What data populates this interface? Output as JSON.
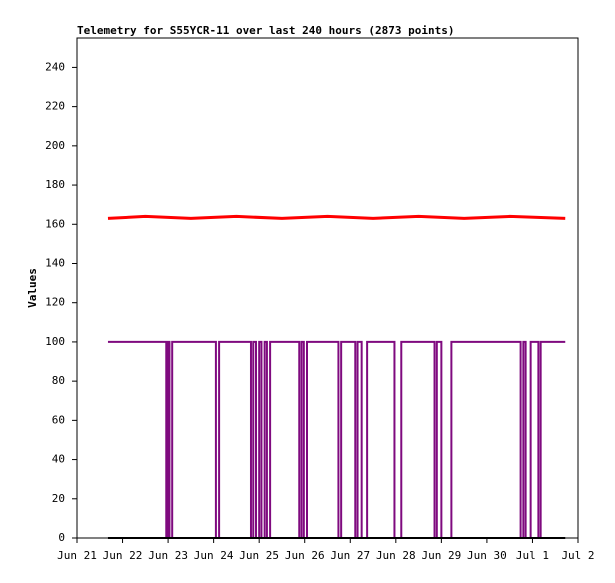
{
  "chart_data": {
    "type": "line",
    "title": "Telemetry for S55YCR-11 over last 240 hours (2873 points)",
    "y_label": "Values",
    "xlim": [
      0,
      11
    ],
    "xticks": [
      {
        "value": 0,
        "label": "Jun 21"
      },
      {
        "value": 1,
        "label": "Jun 22"
      },
      {
        "value": 2,
        "label": "Jun 23"
      },
      {
        "value": 3,
        "label": "Jun 24"
      },
      {
        "value": 4,
        "label": "Jun 25"
      },
      {
        "value": 5,
        "label": "Jun 26"
      },
      {
        "value": 6,
        "label": "Jun 27"
      },
      {
        "value": 7,
        "label": "Jun 28"
      },
      {
        "value": 8,
        "label": "Jun 29"
      },
      {
        "value": 9,
        "label": "Jun 30"
      },
      {
        "value": 10,
        "label": "Jul 1"
      },
      {
        "value": 11,
        "label": "Jul 2"
      }
    ],
    "ylim": [
      0,
      255
    ],
    "yticks": [
      0,
      20,
      40,
      60,
      80,
      100,
      120,
      140,
      160,
      180,
      200,
      220,
      240
    ],
    "series": [
      {
        "color": "#ff0000",
        "width": 3,
        "x": [
          0.68,
          1.5,
          2.5,
          3.5,
          4.5,
          5.5,
          6.5,
          7.5,
          8.5,
          9.5,
          10.72
        ],
        "values": [
          163,
          164,
          163,
          164,
          163,
          164,
          163,
          164,
          163,
          164,
          163
        ]
      },
      {
        "color": "#7f0a7f",
        "width": 2,
        "x": [
          0.68,
          1.96,
          1.96,
          1.99,
          1.99,
          2.03,
          2.03,
          2.09,
          2.09,
          3.05,
          3.05,
          3.12,
          3.12,
          3.82,
          3.82,
          3.87,
          3.87,
          3.93,
          3.93,
          4.0,
          4.0,
          4.05,
          4.05,
          4.12,
          4.12,
          4.17,
          4.17,
          4.24,
          4.24,
          4.88,
          4.88,
          4.93,
          4.93,
          4.98,
          4.98,
          5.05,
          5.05,
          5.74,
          5.74,
          5.8,
          5.8,
          6.11,
          6.11,
          6.16,
          6.16,
          6.25,
          6.25,
          6.37,
          6.37,
          6.97,
          6.97,
          7.12,
          7.12,
          7.85,
          7.85,
          7.9,
          7.9,
          8.0,
          8.0,
          8.22,
          8.22,
          9.74,
          9.74,
          9.8,
          9.8,
          9.85,
          9.85,
          9.96,
          9.96,
          10.13,
          10.13,
          10.18,
          10.18,
          10.72
        ],
        "values": [
          100,
          100,
          0,
          0,
          100,
          100,
          0,
          0,
          100,
          100,
          0,
          0,
          100,
          100,
          0,
          0,
          100,
          100,
          0,
          0,
          100,
          100,
          0,
          0,
          100,
          100,
          0,
          0,
          100,
          100,
          0,
          0,
          100,
          100,
          0,
          0,
          100,
          100,
          0,
          0,
          100,
          100,
          0,
          0,
          100,
          100,
          0,
          0,
          100,
          100,
          0,
          0,
          100,
          100,
          0,
          0,
          100,
          100,
          0,
          0,
          100,
          100,
          0,
          0,
          100,
          100,
          0,
          0,
          100,
          100,
          0,
          0,
          100,
          100
        ]
      },
      {
        "color": "#000000",
        "width": 2,
        "x": [
          0.68,
          10.72
        ],
        "values": [
          0,
          0
        ]
      }
    ]
  }
}
